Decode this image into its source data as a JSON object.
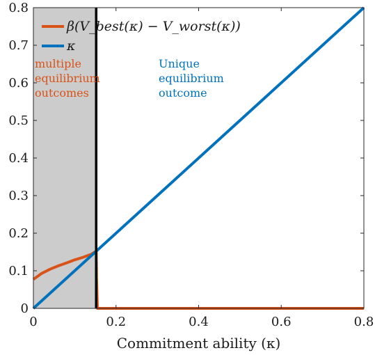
{
  "chart_data": {
    "type": "line",
    "title": "",
    "xlabel": "Commitment ability (κ)",
    "ylabel": "",
    "xlim": [
      0,
      0.8
    ],
    "ylim": [
      0,
      0.8
    ],
    "xticks": [
      0,
      0.2,
      0.4,
      0.6,
      0.8
    ],
    "xtick_labels": [
      "0",
      "0.2",
      "0.4",
      "0.6",
      "0.8"
    ],
    "yticks": [
      0,
      0.1,
      0.2,
      0.3,
      0.4,
      0.5,
      0.6,
      0.7,
      0.8
    ],
    "ytick_labels": [
      "0",
      "0.1",
      "0.2",
      "0.3",
      "0.4",
      "0.5",
      "0.6",
      "0.7",
      "0.8"
    ],
    "grid": false,
    "legend_position": "top-left",
    "threshold_x": 0.152,
    "shaded_region": [
      0,
      0.152
    ],
    "series": [
      {
        "name": "β(V_best(κ) − V_worst(κ))",
        "color": "#D95319",
        "x": [
          0,
          0.02,
          0.04,
          0.06,
          0.08,
          0.1,
          0.12,
          0.14,
          0.152,
          0.153,
          0.155,
          0.8
        ],
        "y": [
          0.077,
          0.093,
          0.104,
          0.113,
          0.121,
          0.129,
          0.136,
          0.144,
          0.152,
          0.08,
          0,
          0
        ]
      },
      {
        "name": "κ",
        "color": "#0072BD",
        "x": [
          0,
          0.8
        ],
        "y": [
          0,
          0.8
        ]
      }
    ],
    "annotations": [
      {
        "lines": [
          "multiple",
          "equilibrium",
          "outcomes"
        ],
        "color": "#D95319"
      },
      {
        "lines": [
          "Unique",
          "equilibrium",
          "outcome"
        ],
        "color": "#0072BD"
      }
    ]
  }
}
